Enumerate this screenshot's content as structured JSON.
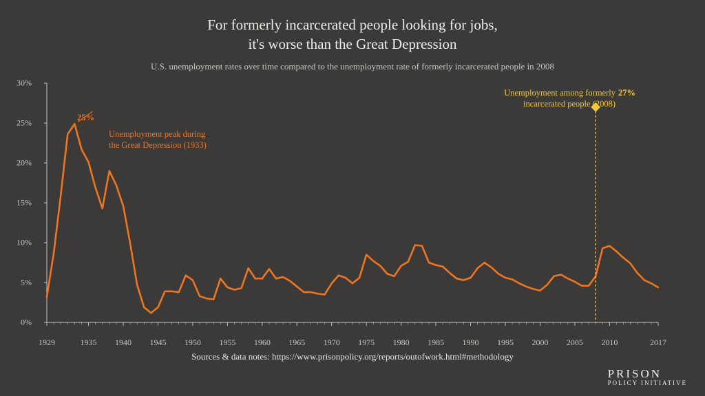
{
  "title_line1": "For formerly incarcerated people looking for jobs,",
  "title_line2": "it's worse than the Great Depression",
  "subtitle": "U.S. unemployment rates over time compared to the unemployment rate of formerly incarcerated people in 2008",
  "sources": "Sources & data notes: https://www.prisonpolicy.org/reports/outofwork.html#methodology",
  "logo_top": "PRISON",
  "logo_bot": "POLICY INITIATIVE",
  "chart": {
    "type": "line",
    "background_color": "#3c3a38",
    "line_color": "#ee7522",
    "line_width": 2.6,
    "axis_color": "#c8c4bf",
    "tick_color": "#c8c4bf",
    "annotation_color_orange": "#ee7522",
    "annotation_color_yellow": "#f3c837",
    "marker_color_yellow": "#f3c837",
    "dashed_line_color": "#f3c837",
    "xlim": [
      1929,
      2017
    ],
    "ylim": [
      0,
      30
    ],
    "y_ticks": [
      0,
      5,
      10,
      15,
      20,
      25,
      30
    ],
    "y_tick_labels": [
      "0%",
      "5%",
      "10%",
      "15%",
      "20%",
      "25%",
      "30%"
    ],
    "x_ticks": [
      1929,
      1935,
      1940,
      1945,
      1950,
      1955,
      1960,
      1965,
      1970,
      1975,
      1980,
      1985,
      1990,
      1995,
      2000,
      2005,
      2010,
      2017
    ],
    "x_tick_labels": [
      "1929",
      "1935",
      "1940",
      "1945",
      "1950",
      "1955",
      "1960",
      "1965",
      "1970",
      "1975",
      "1980",
      "1985",
      "1990",
      "1995",
      "2000",
      "2005",
      "2010",
      "2017"
    ],
    "series": [
      {
        "year": 1929,
        "rate": 3.2
      },
      {
        "year": 1930,
        "rate": 8.7
      },
      {
        "year": 1931,
        "rate": 15.9
      },
      {
        "year": 1932,
        "rate": 23.6
      },
      {
        "year": 1933,
        "rate": 24.9
      },
      {
        "year": 1934,
        "rate": 21.7
      },
      {
        "year": 1935,
        "rate": 20.1
      },
      {
        "year": 1936,
        "rate": 16.9
      },
      {
        "year": 1937,
        "rate": 14.3
      },
      {
        "year": 1938,
        "rate": 19.0
      },
      {
        "year": 1939,
        "rate": 17.2
      },
      {
        "year": 1940,
        "rate": 14.6
      },
      {
        "year": 1941,
        "rate": 9.9
      },
      {
        "year": 1942,
        "rate": 4.7
      },
      {
        "year": 1943,
        "rate": 1.9
      },
      {
        "year": 1944,
        "rate": 1.2
      },
      {
        "year": 1945,
        "rate": 1.9
      },
      {
        "year": 1946,
        "rate": 3.9
      },
      {
        "year": 1947,
        "rate": 3.9
      },
      {
        "year": 1948,
        "rate": 3.8
      },
      {
        "year": 1949,
        "rate": 5.9
      },
      {
        "year": 1950,
        "rate": 5.3
      },
      {
        "year": 1951,
        "rate": 3.3
      },
      {
        "year": 1952,
        "rate": 3.0
      },
      {
        "year": 1953,
        "rate": 2.9
      },
      {
        "year": 1954,
        "rate": 5.5
      },
      {
        "year": 1955,
        "rate": 4.4
      },
      {
        "year": 1956,
        "rate": 4.1
      },
      {
        "year": 1957,
        "rate": 4.3
      },
      {
        "year": 1958,
        "rate": 6.8
      },
      {
        "year": 1959,
        "rate": 5.5
      },
      {
        "year": 1960,
        "rate": 5.5
      },
      {
        "year": 1961,
        "rate": 6.7
      },
      {
        "year": 1962,
        "rate": 5.5
      },
      {
        "year": 1963,
        "rate": 5.7
      },
      {
        "year": 1964,
        "rate": 5.2
      },
      {
        "year": 1965,
        "rate": 4.5
      },
      {
        "year": 1966,
        "rate": 3.8
      },
      {
        "year": 1967,
        "rate": 3.8
      },
      {
        "year": 1968,
        "rate": 3.6
      },
      {
        "year": 1969,
        "rate": 3.5
      },
      {
        "year": 1970,
        "rate": 4.9
      },
      {
        "year": 1971,
        "rate": 5.9
      },
      {
        "year": 1972,
        "rate": 5.6
      },
      {
        "year": 1973,
        "rate": 4.9
      },
      {
        "year": 1974,
        "rate": 5.6
      },
      {
        "year": 1975,
        "rate": 8.5
      },
      {
        "year": 1976,
        "rate": 7.7
      },
      {
        "year": 1977,
        "rate": 7.1
      },
      {
        "year": 1978,
        "rate": 6.1
      },
      {
        "year": 1979,
        "rate": 5.8
      },
      {
        "year": 1980,
        "rate": 7.1
      },
      {
        "year": 1981,
        "rate": 7.6
      },
      {
        "year": 1982,
        "rate": 9.7
      },
      {
        "year": 1983,
        "rate": 9.6
      },
      {
        "year": 1984,
        "rate": 7.5
      },
      {
        "year": 1985,
        "rate": 7.2
      },
      {
        "year": 1986,
        "rate": 7.0
      },
      {
        "year": 1987,
        "rate": 6.2
      },
      {
        "year": 1988,
        "rate": 5.5
      },
      {
        "year": 1989,
        "rate": 5.3
      },
      {
        "year": 1990,
        "rate": 5.6
      },
      {
        "year": 1991,
        "rate": 6.8
      },
      {
        "year": 1992,
        "rate": 7.5
      },
      {
        "year": 1993,
        "rate": 6.9
      },
      {
        "year": 1994,
        "rate": 6.1
      },
      {
        "year": 1995,
        "rate": 5.6
      },
      {
        "year": 1996,
        "rate": 5.4
      },
      {
        "year": 1997,
        "rate": 4.9
      },
      {
        "year": 1998,
        "rate": 4.5
      },
      {
        "year": 1999,
        "rate": 4.2
      },
      {
        "year": 2000,
        "rate": 4.0
      },
      {
        "year": 2001,
        "rate": 4.7
      },
      {
        "year": 2002,
        "rate": 5.8
      },
      {
        "year": 2003,
        "rate": 6.0
      },
      {
        "year": 2004,
        "rate": 5.5
      },
      {
        "year": 2005,
        "rate": 5.1
      },
      {
        "year": 2006,
        "rate": 4.6
      },
      {
        "year": 2007,
        "rate": 4.6
      },
      {
        "year": 2008,
        "rate": 5.8
      },
      {
        "year": 2009,
        "rate": 9.3
      },
      {
        "year": 2010,
        "rate": 9.6
      },
      {
        "year": 2011,
        "rate": 8.9
      },
      {
        "year": 2012,
        "rate": 8.1
      },
      {
        "year": 2013,
        "rate": 7.4
      },
      {
        "year": 2014,
        "rate": 6.2
      },
      {
        "year": 2015,
        "rate": 5.3
      },
      {
        "year": 2016,
        "rate": 4.9
      },
      {
        "year": 2017,
        "rate": 4.4
      }
    ],
    "highlight_point": {
      "year": 2008,
      "rate": 27,
      "label": "27%"
    },
    "annotation_peak": {
      "pct": "25%",
      "text_line1": "Unemployment peak during",
      "text_line2": "the Great Depression (1933)"
    },
    "annotation_incarc": {
      "text_line1": "Unemployment among formerly",
      "text_line2": "incarcerated people (2008)"
    }
  }
}
